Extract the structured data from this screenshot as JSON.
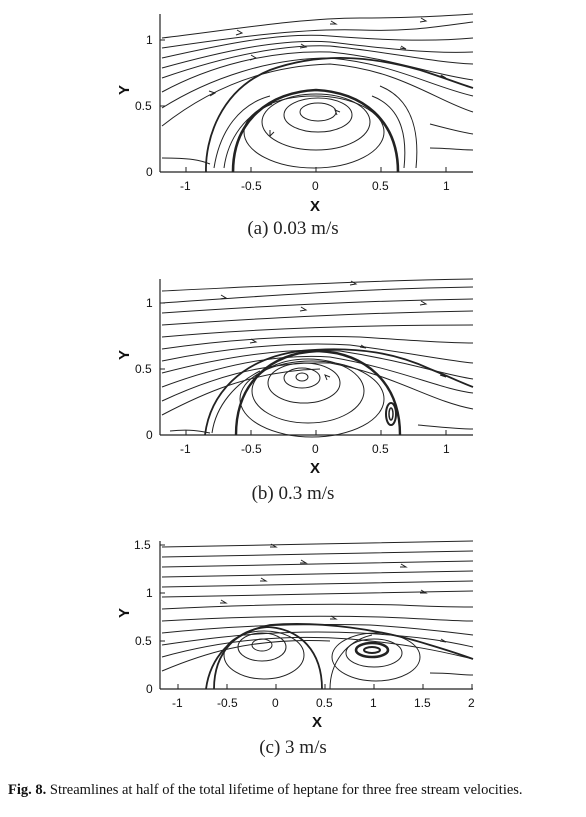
{
  "figure": {
    "panels": [
      {
        "label": "(a) 0.03 m/s",
        "xlabel": "X",
        "ylabel": "Y",
        "xticks": [
          "-1",
          "-0.5",
          "0",
          "0.5",
          "1"
        ],
        "yticks": [
          "0",
          "0.5",
          "1"
        ]
      },
      {
        "label": "(b) 0.3 m/s",
        "xlabel": "X",
        "ylabel": "Y",
        "xticks": [
          "-1",
          "-0.5",
          "0",
          "0.5",
          "1"
        ],
        "yticks": [
          "0",
          "0.5",
          "1"
        ]
      },
      {
        "label": "(c) 3 m/s",
        "xlabel": "X",
        "ylabel": "Y",
        "xticks": [
          "-1",
          "-0.5",
          "0",
          "0.5",
          "1",
          "1.5",
          "2"
        ],
        "yticks": [
          "0",
          "0.5",
          "1",
          "1.5"
        ]
      }
    ],
    "caption": {
      "label": "Fig. 8.",
      "text": "Streamlines at half of the total lifetime of heptane for three free stream velocities."
    }
  }
}
